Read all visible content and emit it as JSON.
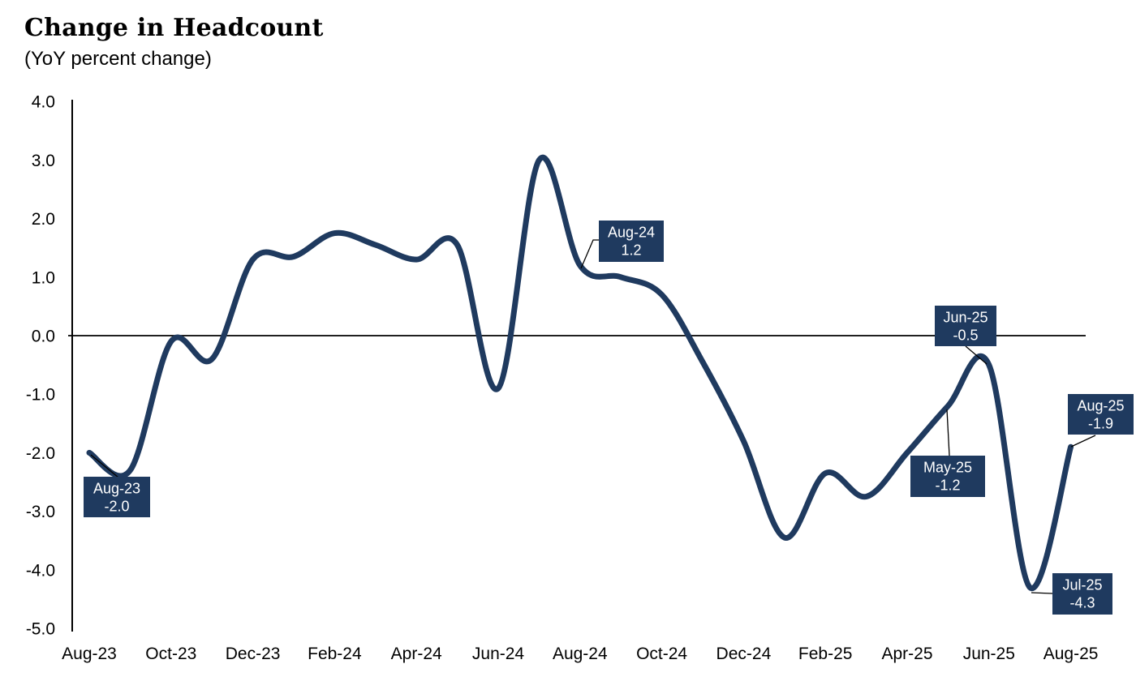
{
  "chart_data": {
    "type": "line",
    "title": "Change in Headcount",
    "subtitle": "(YoY percent change)",
    "xlabel": "",
    "ylabel": "",
    "x": [
      "Aug-23",
      "Sep-23",
      "Oct-23",
      "Nov-23",
      "Dec-23",
      "Jan-24",
      "Feb-24",
      "Mar-24",
      "Apr-24",
      "May-24",
      "Jun-24",
      "Jul-24",
      "Aug-24",
      "Sep-24",
      "Oct-24",
      "Nov-24",
      "Dec-24",
      "Jan-25",
      "Feb-25",
      "Mar-25",
      "Apr-25",
      "May-25",
      "Jun-25",
      "Jul-25",
      "Aug-25"
    ],
    "series": [
      {
        "name": "Headcount YoY percent change",
        "values": [
          -2.0,
          -2.3,
          -0.1,
          -0.4,
          1.3,
          1.35,
          1.75,
          1.55,
          1.3,
          1.55,
          -0.9,
          3.0,
          1.2,
          1.0,
          0.7,
          -0.45,
          -1.8,
          -3.45,
          -2.35,
          -2.75,
          -2.0,
          -1.2,
          -0.5,
          -4.3,
          -1.9
        ]
      }
    ],
    "ylim": [
      -5.0,
      4.0
    ],
    "ytick_labels": [
      "4.0",
      "3.0",
      "2.0",
      "1.0",
      "0.0",
      "-1.0",
      "-2.0",
      "-3.0",
      "-4.0",
      "-5.0"
    ],
    "xtick_labels": [
      "Aug-23",
      "Oct-23",
      "Dec-23",
      "Feb-24",
      "Apr-24",
      "Jun-24",
      "Aug-24",
      "Oct-24",
      "Dec-24",
      "Feb-25",
      "Apr-25",
      "Jun-25",
      "Aug-25"
    ],
    "grid": "zero-line-only",
    "legend": "none",
    "line_smoothing": "spline",
    "callouts": [
      {
        "month": "Aug-23",
        "label": "Aug-23",
        "value": "-2.0"
      },
      {
        "month": "Aug-24",
        "label": "Aug-24",
        "value": "1.2"
      },
      {
        "month": "May-25",
        "label": "May-25",
        "value": "-1.2"
      },
      {
        "month": "Jun-25",
        "label": "Jun-25",
        "value": "-0.5"
      },
      {
        "month": "Jul-25",
        "label": "Jul-25",
        "value": "-4.3"
      },
      {
        "month": "Aug-25",
        "label": "Aug-25",
        "value": "-1.9"
      }
    ]
  },
  "colors": {
    "line": "#1f3a5f",
    "callout_bg": "#1f3a5f",
    "callout_text": "#ffffff",
    "axis": "#000000",
    "text": "#000000",
    "background": "#ffffff"
  }
}
